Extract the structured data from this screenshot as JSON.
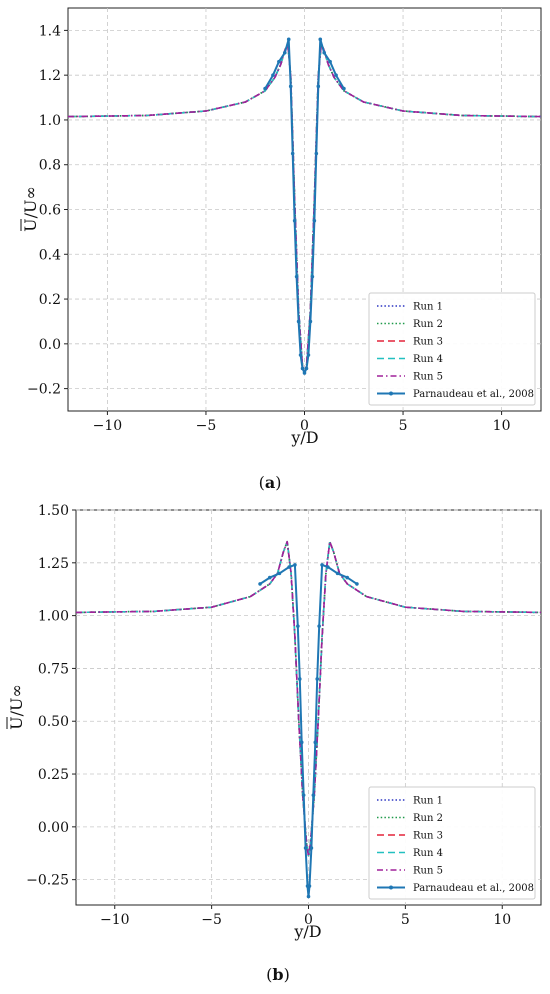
{
  "chart_data": [
    {
      "type": "line",
      "panel": "a",
      "caption_prefix": "(",
      "caption_letter": "a",
      "caption_suffix": ")",
      "xlabel": "y/D",
      "ylabel": "U/U∞",
      "xlim": [
        -12,
        12
      ],
      "ylim": [
        -0.3,
        1.5
      ],
      "xticks": [
        -10,
        -5,
        0,
        5,
        10
      ],
      "yticks": [
        -0.2,
        0.0,
        0.2,
        0.4,
        0.6,
        0.8,
        1.0,
        1.2,
        1.4
      ],
      "ytick_labels": [
        "−0.2",
        "0.0",
        "0.2",
        "0.4",
        "0.6",
        "0.8",
        "1.0",
        "1.2",
        "1.4"
      ],
      "xtick_labels": [
        "−10",
        "−5",
        "0",
        "5",
        "10"
      ],
      "grid": true,
      "legend_position": "lower-right",
      "series": [
        {
          "name": "Run 1",
          "color": "#2b35c2",
          "style": "dotted",
          "x": [
            -12,
            -8,
            -5,
            -3,
            -2,
            -1.5,
            -1.2,
            -1.0,
            -0.85,
            -0.7,
            -0.5,
            -0.3,
            -0.1,
            0,
            0.1,
            0.3,
            0.5,
            0.7,
            0.85,
            1.0,
            1.2,
            1.5,
            2,
            3,
            5,
            8,
            12
          ],
          "y": [
            1.015,
            1.02,
            1.04,
            1.08,
            1.13,
            1.19,
            1.25,
            1.31,
            1.34,
            1.2,
            0.65,
            0.15,
            -0.1,
            -0.13,
            -0.1,
            0.15,
            0.65,
            1.2,
            1.34,
            1.31,
            1.25,
            1.19,
            1.13,
            1.08,
            1.04,
            1.02,
            1.015
          ]
        },
        {
          "name": "Run 2",
          "color": "#1f9a4a",
          "style": "dotted",
          "x": [
            -12,
            -8,
            -5,
            -3,
            -2,
            -1.5,
            -1.2,
            -1.0,
            -0.85,
            -0.7,
            -0.5,
            -0.3,
            -0.1,
            0,
            0.1,
            0.3,
            0.5,
            0.7,
            0.85,
            1.0,
            1.2,
            1.5,
            2,
            3,
            5,
            8,
            12
          ],
          "y": [
            1.015,
            1.02,
            1.04,
            1.08,
            1.13,
            1.19,
            1.25,
            1.31,
            1.34,
            1.2,
            0.65,
            0.15,
            -0.1,
            -0.13,
            -0.1,
            0.15,
            0.65,
            1.2,
            1.34,
            1.31,
            1.25,
            1.19,
            1.13,
            1.08,
            1.04,
            1.02,
            1.015
          ]
        },
        {
          "name": "Run 3",
          "color": "#e3243a",
          "style": "dashed",
          "x": [
            -12,
            -8,
            -5,
            -3,
            -2,
            -1.5,
            -1.2,
            -1.0,
            -0.85,
            -0.7,
            -0.5,
            -0.3,
            -0.1,
            0,
            0.1,
            0.3,
            0.5,
            0.7,
            0.85,
            1.0,
            1.2,
            1.5,
            2,
            3,
            5,
            8,
            12
          ],
          "y": [
            1.015,
            1.02,
            1.04,
            1.08,
            1.13,
            1.19,
            1.25,
            1.31,
            1.34,
            1.2,
            0.65,
            0.15,
            -0.1,
            -0.13,
            -0.1,
            0.15,
            0.65,
            1.2,
            1.34,
            1.31,
            1.25,
            1.19,
            1.13,
            1.08,
            1.04,
            1.02,
            1.015
          ]
        },
        {
          "name": "Run 4",
          "color": "#22c0c0",
          "style": "dashed",
          "x": [
            -12,
            -8,
            -5,
            -3,
            -2,
            -1.5,
            -1.2,
            -1.0,
            -0.85,
            -0.7,
            -0.5,
            -0.3,
            -0.1,
            0,
            0.1,
            0.3,
            0.5,
            0.7,
            0.85,
            1.0,
            1.2,
            1.5,
            2,
            3,
            5,
            8,
            12
          ],
          "y": [
            1.015,
            1.02,
            1.04,
            1.08,
            1.13,
            1.19,
            1.25,
            1.31,
            1.34,
            1.2,
            0.65,
            0.15,
            -0.1,
            -0.13,
            -0.1,
            0.15,
            0.65,
            1.2,
            1.34,
            1.31,
            1.25,
            1.19,
            1.13,
            1.08,
            1.04,
            1.02,
            1.015
          ]
        },
        {
          "name": "Run 5",
          "color": "#a0209a",
          "style": "dashdot",
          "x": [
            -12,
            -8,
            -5,
            -3,
            -2,
            -1.5,
            -1.2,
            -1.0,
            -0.85,
            -0.7,
            -0.5,
            -0.3,
            -0.1,
            0,
            0.1,
            0.3,
            0.5,
            0.7,
            0.85,
            1.0,
            1.2,
            1.5,
            2,
            3,
            5,
            8,
            12
          ],
          "y": [
            1.015,
            1.02,
            1.04,
            1.08,
            1.13,
            1.19,
            1.25,
            1.31,
            1.34,
            1.2,
            0.65,
            0.15,
            -0.1,
            -0.13,
            -0.1,
            0.15,
            0.65,
            1.2,
            1.34,
            1.31,
            1.25,
            1.19,
            1.13,
            1.08,
            1.04,
            1.02,
            1.015
          ]
        },
        {
          "name": "Parnaudeau et al., 2008",
          "color": "#1f77b4",
          "style": "solid-marker",
          "x": [
            -2.0,
            -1.6,
            -1.3,
            -1.0,
            -0.8,
            -0.7,
            -0.6,
            -0.5,
            -0.4,
            -0.3,
            -0.2,
            -0.1,
            0,
            0.1,
            0.2,
            0.3,
            0.4,
            0.5,
            0.6,
            0.7,
            0.8,
            1.0,
            1.3,
            1.6,
            2.0
          ],
          "y": [
            1.14,
            1.2,
            1.26,
            1.3,
            1.36,
            1.15,
            0.85,
            0.55,
            0.3,
            0.1,
            -0.05,
            -0.11,
            -0.13,
            -0.11,
            -0.05,
            0.1,
            0.3,
            0.55,
            0.85,
            1.15,
            1.36,
            1.3,
            1.26,
            1.2,
            1.14
          ]
        }
      ]
    },
    {
      "type": "line",
      "panel": "b",
      "caption_prefix": "(",
      "caption_letter": "b",
      "caption_suffix": ")",
      "xlabel": "y/D",
      "ylabel": "U/U∞",
      "xlim": [
        -12,
        12
      ],
      "ylim": [
        -0.37,
        1.5
      ],
      "xticks": [
        -10,
        -5,
        0,
        5,
        10
      ],
      "yticks": [
        -0.25,
        0.0,
        0.25,
        0.5,
        0.75,
        1.0,
        1.25,
        1.5
      ],
      "ytick_labels": [
        "−0.25",
        "0.00",
        "0.25",
        "0.50",
        "0.75",
        "1.00",
        "1.25",
        "1.50"
      ],
      "xtick_labels": [
        "−10",
        "−5",
        "0",
        "5",
        "10"
      ],
      "grid": true,
      "legend_position": "lower-right",
      "series": [
        {
          "name": "Run 1",
          "color": "#2b35c2",
          "style": "dotted",
          "x": [
            -12,
            -8,
            -5,
            -3,
            -2,
            -1.6,
            -1.3,
            -1.1,
            -0.9,
            -0.7,
            -0.5,
            -0.3,
            -0.1,
            0,
            0.1,
            0.3,
            0.5,
            0.7,
            0.9,
            1.1,
            1.3,
            1.6,
            2,
            3,
            5,
            8,
            12
          ],
          "y": [
            1.015,
            1.02,
            1.04,
            1.09,
            1.15,
            1.2,
            1.3,
            1.35,
            1.2,
            0.9,
            0.5,
            0.15,
            -0.08,
            -0.14,
            -0.08,
            0.15,
            0.5,
            0.9,
            1.2,
            1.35,
            1.3,
            1.2,
            1.15,
            1.09,
            1.04,
            1.02,
            1.015
          ]
        },
        {
          "name": "Run 2",
          "color": "#1f9a4a",
          "style": "dotted",
          "x": [
            -12,
            -8,
            -5,
            -3,
            -2,
            -1.6,
            -1.3,
            -1.1,
            -0.9,
            -0.7,
            -0.5,
            -0.3,
            -0.1,
            0,
            0.1,
            0.3,
            0.5,
            0.7,
            0.9,
            1.1,
            1.3,
            1.6,
            2,
            3,
            5,
            8,
            12
          ],
          "y": [
            1.015,
            1.02,
            1.04,
            1.09,
            1.15,
            1.2,
            1.3,
            1.35,
            1.2,
            0.9,
            0.5,
            0.15,
            -0.08,
            -0.14,
            -0.08,
            0.15,
            0.5,
            0.9,
            1.2,
            1.35,
            1.3,
            1.2,
            1.15,
            1.09,
            1.04,
            1.02,
            1.015
          ]
        },
        {
          "name": "Run 3",
          "color": "#e3243a",
          "style": "dashed",
          "x": [
            -12,
            -8,
            -5,
            -3,
            -2,
            -1.6,
            -1.3,
            -1.1,
            -0.9,
            -0.7,
            -0.5,
            -0.3,
            -0.1,
            0,
            0.1,
            0.3,
            0.5,
            0.7,
            0.9,
            1.1,
            1.3,
            1.6,
            2,
            3,
            5,
            8,
            12
          ],
          "y": [
            1.015,
            1.02,
            1.04,
            1.09,
            1.15,
            1.2,
            1.3,
            1.35,
            1.2,
            0.9,
            0.5,
            0.15,
            -0.08,
            -0.14,
            -0.08,
            0.15,
            0.5,
            0.9,
            1.2,
            1.35,
            1.3,
            1.2,
            1.15,
            1.09,
            1.04,
            1.02,
            1.015
          ]
        },
        {
          "name": "Run 4",
          "color": "#22c0c0",
          "style": "dashed",
          "x": [
            -12,
            -8,
            -5,
            -3,
            -2,
            -1.6,
            -1.3,
            -1.1,
            -0.9,
            -0.7,
            -0.5,
            -0.3,
            -0.1,
            0,
            0.1,
            0.3,
            0.5,
            0.7,
            0.9,
            1.1,
            1.3,
            1.6,
            2,
            3,
            5,
            8,
            12
          ],
          "y": [
            1.015,
            1.02,
            1.04,
            1.09,
            1.15,
            1.2,
            1.3,
            1.35,
            1.2,
            0.9,
            0.5,
            0.15,
            -0.08,
            -0.14,
            -0.08,
            0.15,
            0.5,
            0.9,
            1.2,
            1.35,
            1.3,
            1.2,
            1.15,
            1.09,
            1.04,
            1.02,
            1.015
          ]
        },
        {
          "name": "Run 5",
          "color": "#a0209a",
          "style": "dashdot",
          "x": [
            -12,
            -8,
            -5,
            -3,
            -2,
            -1.6,
            -1.3,
            -1.1,
            -0.9,
            -0.7,
            -0.5,
            -0.3,
            -0.1,
            0,
            0.1,
            0.3,
            0.5,
            0.7,
            0.9,
            1.1,
            1.3,
            1.6,
            2,
            3,
            5,
            8,
            12
          ],
          "y": [
            1.015,
            1.02,
            1.04,
            1.09,
            1.15,
            1.2,
            1.3,
            1.35,
            1.2,
            0.9,
            0.5,
            0.15,
            -0.08,
            -0.14,
            -0.08,
            0.15,
            0.5,
            0.9,
            1.2,
            1.35,
            1.3,
            1.2,
            1.15,
            1.09,
            1.04,
            1.02,
            1.015
          ]
        },
        {
          "name": "Parnaudeau et al., 2008",
          "color": "#1f77b4",
          "style": "solid-marker",
          "x": [
            -2.5,
            -2.0,
            -1.5,
            -1.0,
            -0.7,
            -0.55,
            -0.45,
            -0.35,
            -0.25,
            -0.15,
            -0.05,
            0,
            0.05,
            0.15,
            0.25,
            0.35,
            0.45,
            0.55,
            0.7,
            1.0,
            1.5,
            2.0,
            2.5
          ],
          "y": [
            1.15,
            1.18,
            1.2,
            1.23,
            1.24,
            0.95,
            0.7,
            0.4,
            0.15,
            -0.1,
            -0.28,
            -0.33,
            -0.28,
            -0.1,
            0.15,
            0.4,
            0.7,
            0.95,
            1.24,
            1.23,
            1.2,
            1.18,
            1.15
          ]
        }
      ]
    }
  ]
}
